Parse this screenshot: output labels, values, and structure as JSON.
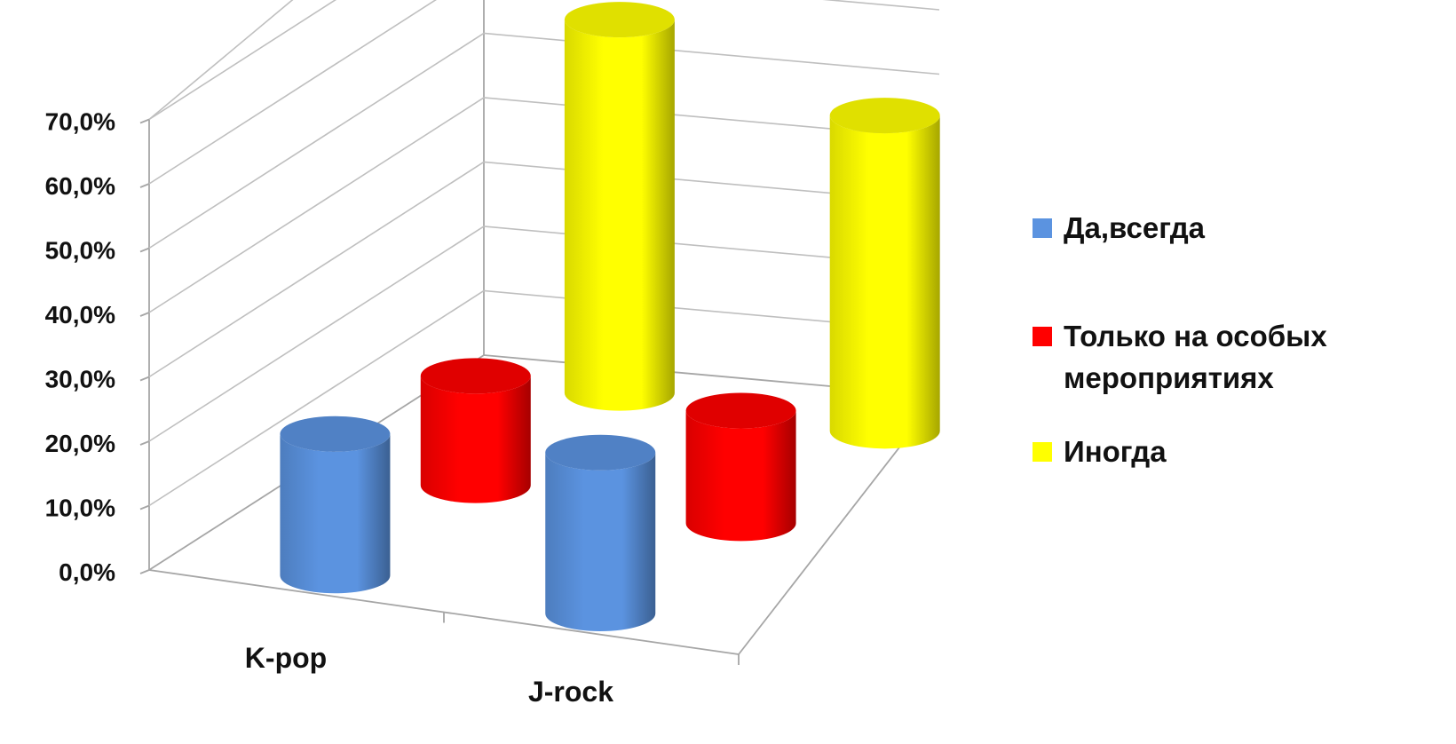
{
  "chart_data": {
    "type": "bar",
    "style": "3d-cylinder",
    "title": "",
    "categories": [
      "K-pop",
      "J-rock"
    ],
    "series": [
      {
        "name": "Да,всегда",
        "color": "#5b93e0",
        "values": [
          22.0,
          25.0
        ]
      },
      {
        "name": "Только на особых мероприятиях",
        "color": "#ff0000",
        "values": [
          17.0,
          17.5
        ]
      },
      {
        "name": "Иногда",
        "color": "#ffff00",
        "values": [
          58.0,
          49.0
        ]
      }
    ],
    "ylim": [
      0,
      70
    ],
    "yticks": [
      "0,0%",
      "10,0%",
      "20,0%",
      "30,0%",
      "40,0%",
      "50,0%",
      "60,0%",
      "70,0%"
    ],
    "grid": true,
    "legend_position": "right"
  },
  "legend": {
    "items": [
      {
        "lines": [
          "Да,всегда"
        ],
        "color": "#5b93e0"
      },
      {
        "lines": [
          "Только на особых",
          "мероприятиях"
        ],
        "color": "#ff0000"
      },
      {
        "lines": [
          "Иногда"
        ],
        "color": "#ffff00"
      }
    ]
  }
}
